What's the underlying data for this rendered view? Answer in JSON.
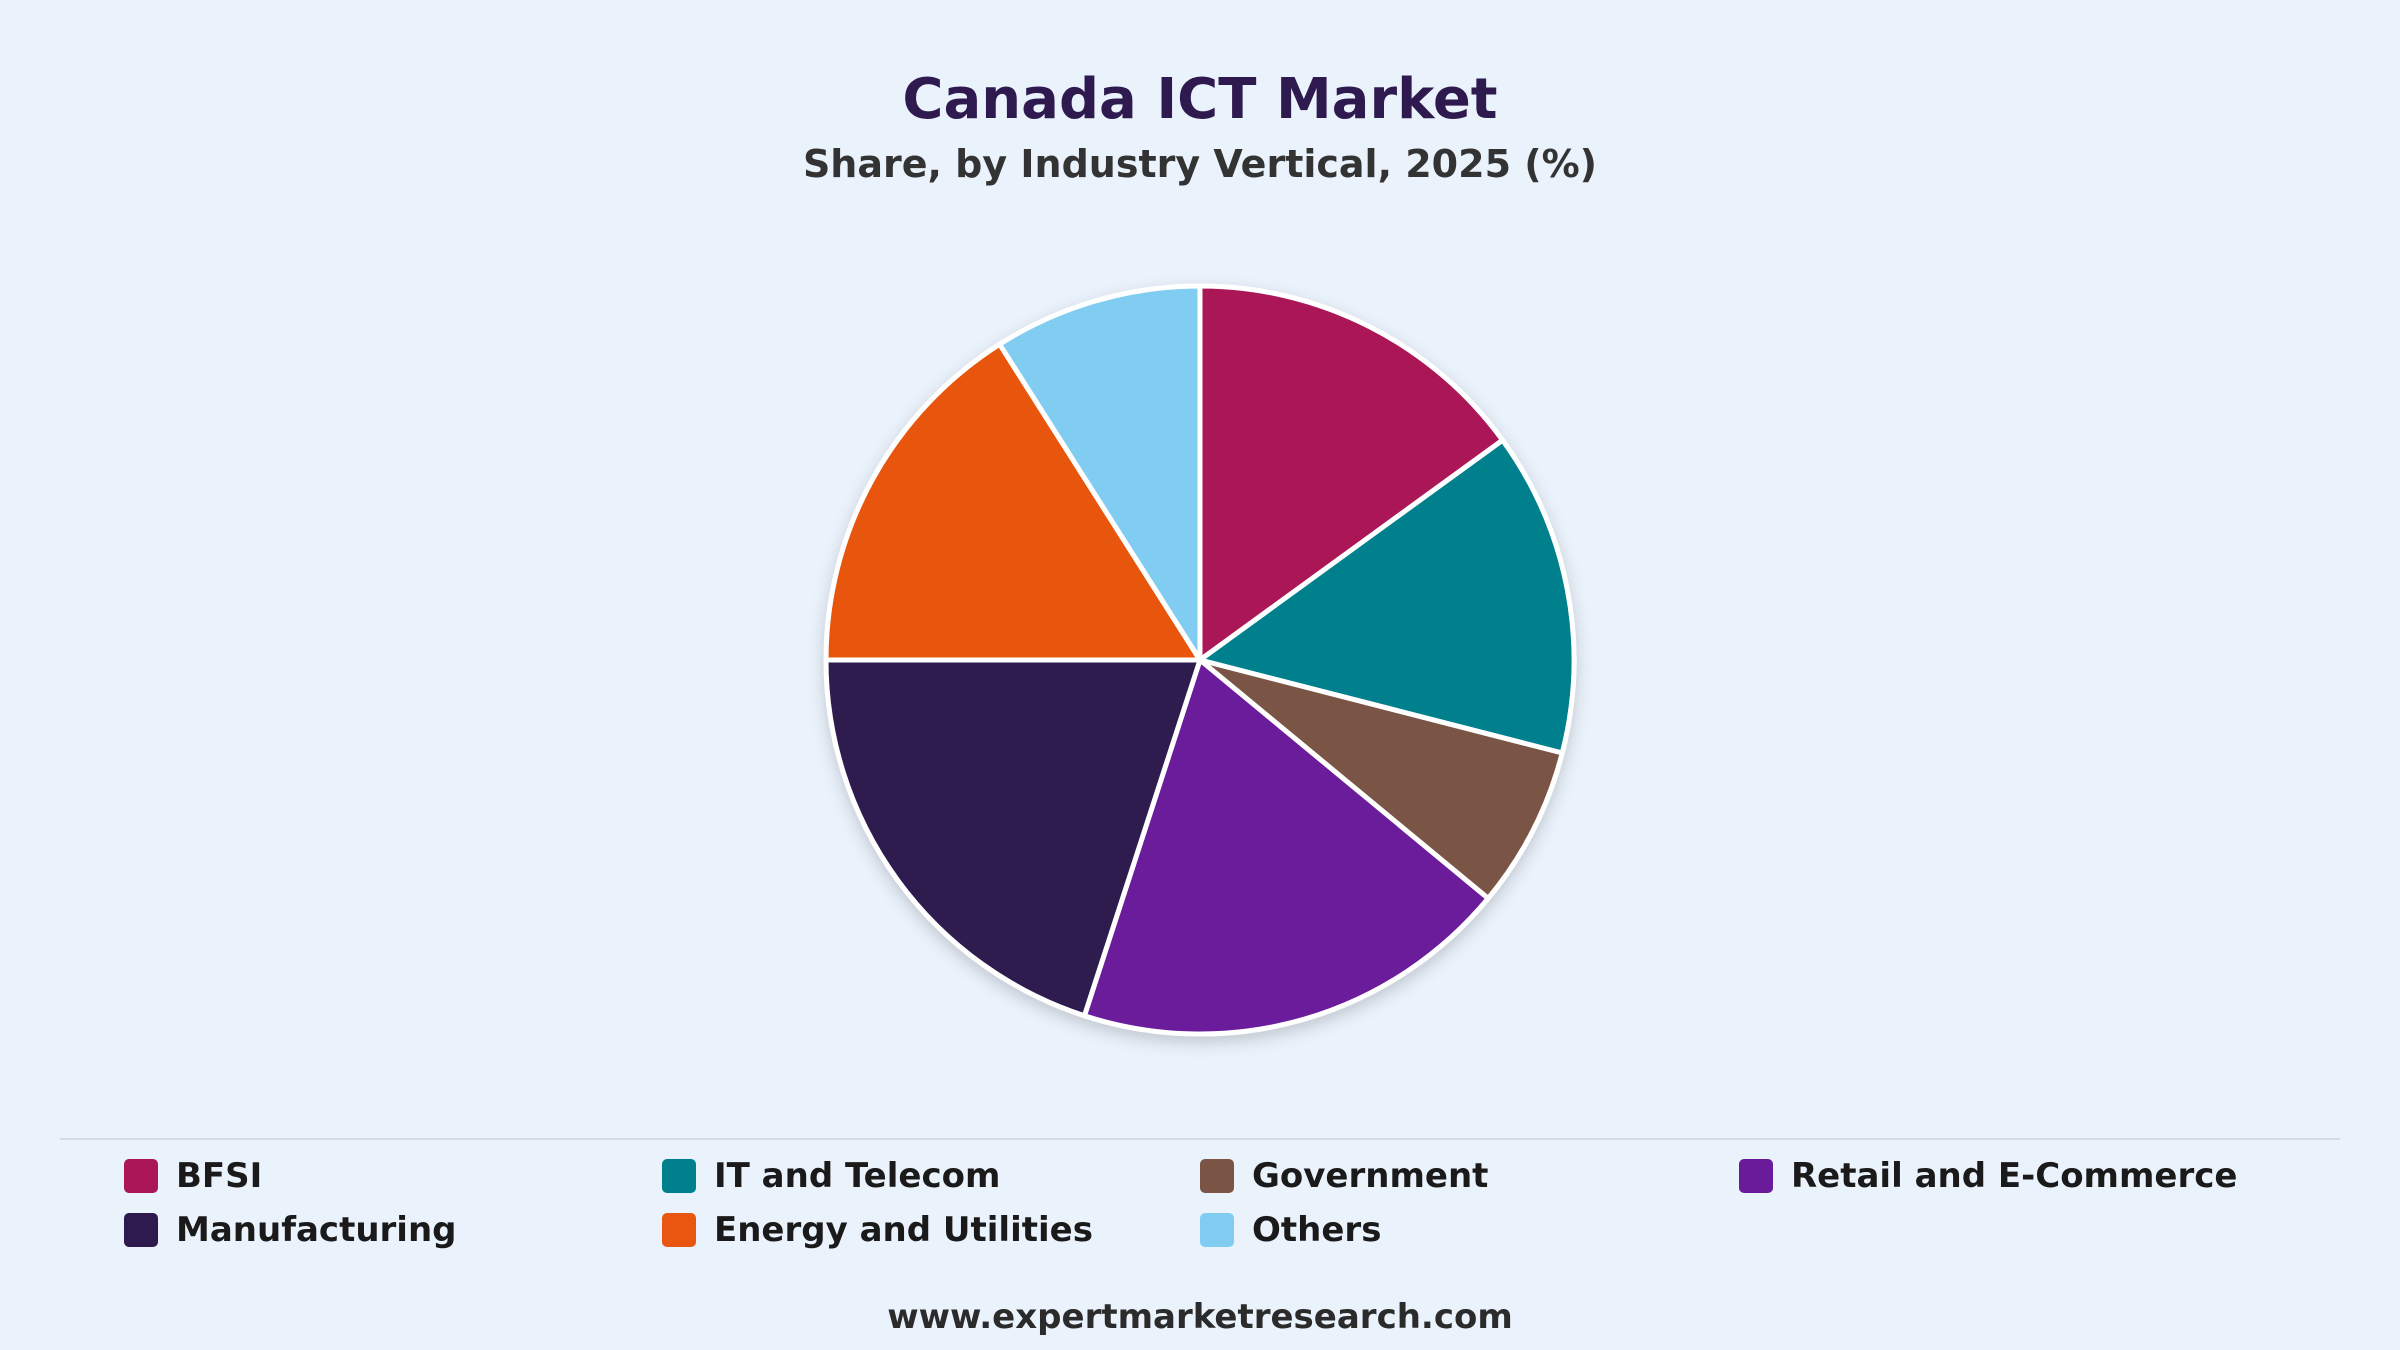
{
  "chart_data": {
    "type": "pie",
    "title": "Canada ICT Market",
    "subtitle": "Share, by Industry Vertical, 2025 (%)",
    "slices": [
      {
        "label": "BFSI",
        "value": 15,
        "color": "#ab1656"
      },
      {
        "label": "IT and Telecom",
        "value": 14,
        "color": "#00808d"
      },
      {
        "label": "Government",
        "value": 7,
        "color": "#7a5545"
      },
      {
        "label": "Retail and E-Commerce",
        "value": 19,
        "color": "#6a1b9a"
      },
      {
        "label": "Manufacturing",
        "value": 20,
        "color": "#2e1a4f"
      },
      {
        "label": "Energy and Utilities",
        "value": 16,
        "color": "#e8560f"
      },
      {
        "label": "Others",
        "value": 9,
        "color": "#81cdf2"
      }
    ],
    "legend_position": "bottom"
  },
  "footer": {
    "url": "www.expertmarketresearch.com"
  }
}
